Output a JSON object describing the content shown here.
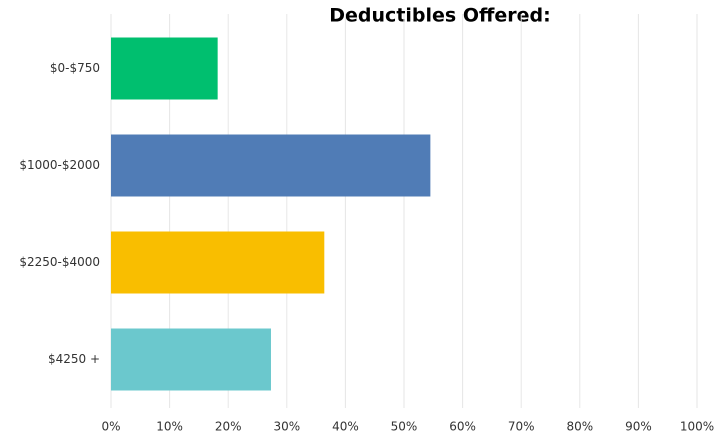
{
  "chart_data": {
    "type": "bar",
    "orientation": "horizontal",
    "title": "Deductibles Offered:",
    "categories": [
      "$0-$750",
      "$1000-$2000",
      "$2250-$4000",
      "$4250 +"
    ],
    "values": [
      18.2,
      54.5,
      36.4,
      27.3
    ],
    "colors": [
      "#00bf6f",
      "#507cb6",
      "#f9be00",
      "#6bc8cd"
    ],
    "xlim": [
      0,
      100
    ],
    "xticks": [
      {
        "value": 0,
        "label": "0%"
      },
      {
        "value": 10,
        "label": "10%"
      },
      {
        "value": 20,
        "label": "20%"
      },
      {
        "value": 30,
        "label": "30%"
      },
      {
        "value": 40,
        "label": "40%"
      },
      {
        "value": 50,
        "label": "50%"
      },
      {
        "value": 60,
        "label": "60%"
      },
      {
        "value": 70,
        "label": "70%"
      },
      {
        "value": 80,
        "label": "80%"
      },
      {
        "value": 90,
        "label": "90%"
      },
      {
        "value": 100,
        "label": "100%"
      }
    ],
    "grid": true
  }
}
